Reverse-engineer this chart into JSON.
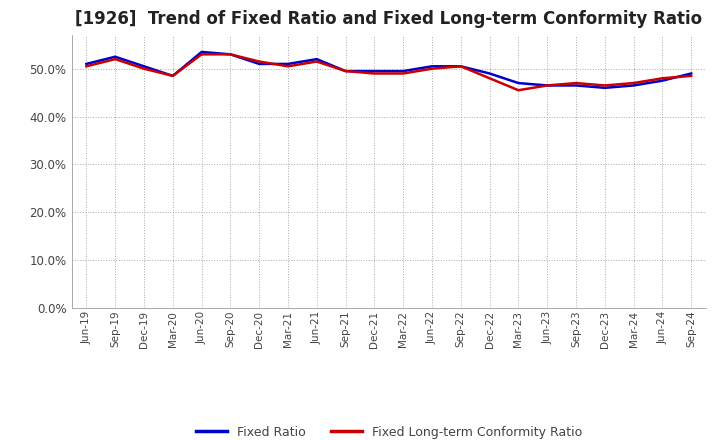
{
  "title": "[1926]  Trend of Fixed Ratio and Fixed Long-term Conformity Ratio",
  "title_fontsize": 12,
  "legend_labels": [
    "Fixed Ratio",
    "Fixed Long-term Conformity Ratio"
  ],
  "line_colors": [
    "#0000cc",
    "#cc0000"
  ],
  "x_labels": [
    "Jun-19",
    "Sep-19",
    "Dec-19",
    "Mar-20",
    "Jun-20",
    "Sep-20",
    "Dec-20",
    "Mar-21",
    "Jun-21",
    "Sep-21",
    "Dec-21",
    "Mar-22",
    "Jun-22",
    "Sep-22",
    "Dec-22",
    "Mar-23",
    "Jun-23",
    "Sep-23",
    "Dec-23",
    "Mar-24",
    "Jun-24",
    "Sep-24"
  ],
  "fixed_ratio": [
    51.0,
    52.5,
    50.5,
    48.5,
    53.5,
    53.0,
    51.0,
    51.0,
    52.0,
    49.5,
    49.5,
    49.5,
    50.5,
    50.5,
    49.0,
    47.0,
    46.5,
    46.5,
    46.0,
    46.5,
    47.5,
    49.0
  ],
  "fixed_lt_ratio": [
    50.5,
    52.0,
    50.0,
    48.5,
    53.0,
    53.0,
    51.5,
    50.5,
    51.5,
    49.5,
    49.0,
    49.0,
    50.0,
    50.5,
    48.0,
    45.5,
    46.5,
    47.0,
    46.5,
    47.0,
    48.0,
    48.5
  ],
  "ylim": [
    0,
    57
  ],
  "yticks": [
    0.0,
    10.0,
    20.0,
    30.0,
    40.0,
    50.0
  ],
  "background_color": "#ffffff",
  "grid_color": "#aaaaaa",
  "line_width": 1.8
}
